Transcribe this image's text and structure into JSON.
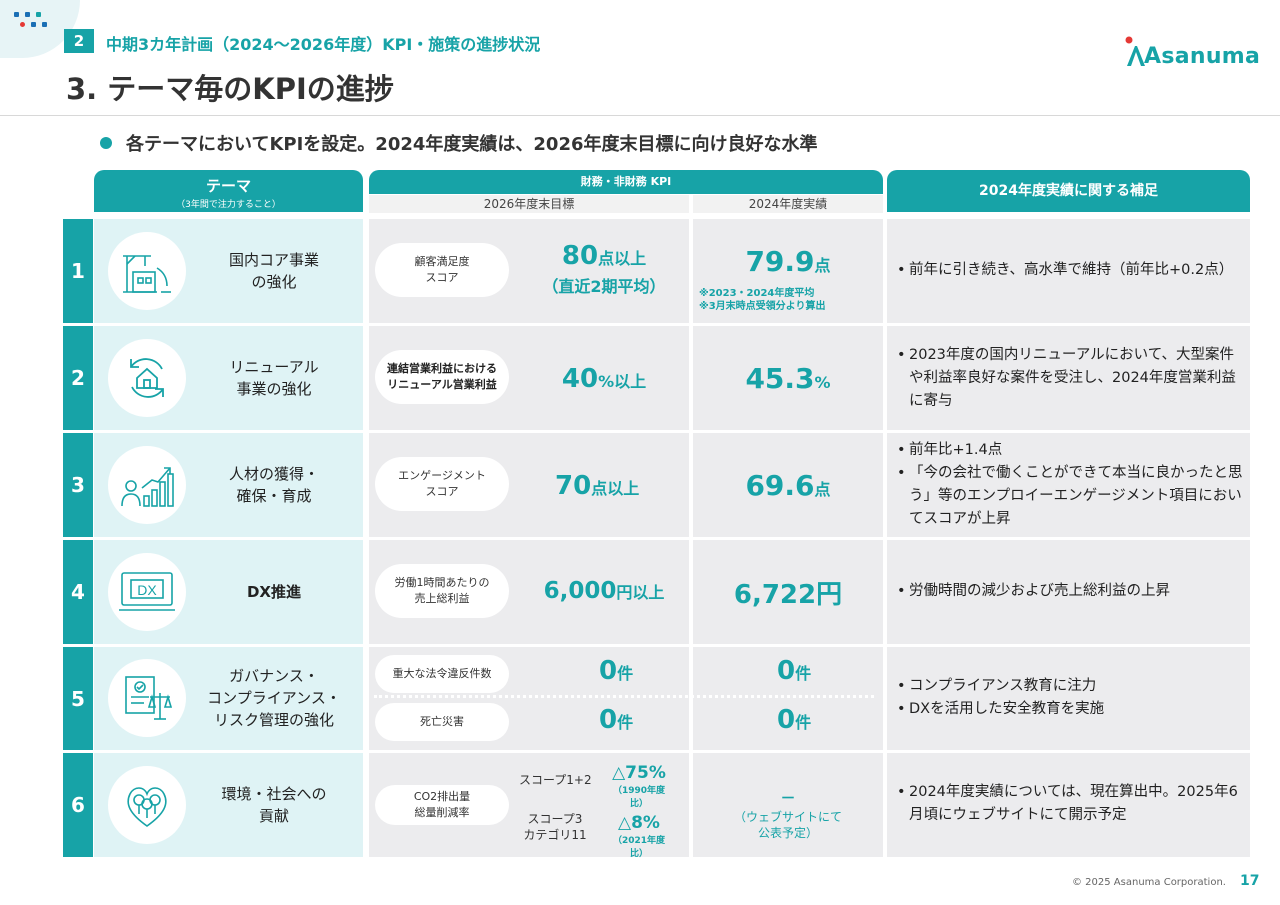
{
  "header": {
    "section_number": "2",
    "section_title": "中期3カ年計画（2024～2026年度）KPI・施策の進捗状況",
    "page_title": "3. テーマ毎のKPIの進捗",
    "logo_text": "Asanuma"
  },
  "lead": "各テーマにおいてKPIを設定。2024年度実績は、2026年度末目標に向け良好な水準",
  "table": {
    "theme_header": "テーマ",
    "theme_header_sub": "（3年間で注力すること）",
    "kpi_header": "財務・非財務 KPI",
    "target_header": "2026年度末目標",
    "actual_header": "2024年度実績",
    "note_header": "2024年度実績に関する補足",
    "rows": [
      {
        "num": "1",
        "icon": "construction-icon",
        "theme": "国内コア事業\nの強化",
        "kpi": "顧客満足度\nスコア",
        "target_num": "80",
        "target_unit": "点以上",
        "target_sub": "（直近2期平均）",
        "actual_num": "79.9",
        "actual_unit": "点",
        "actual_note": "※2023・2024年度平均\n※3月末時点受領分より算出",
        "notes": [
          "前年に引き続き、高水準で維持（前年比+0.2点）"
        ]
      },
      {
        "num": "2",
        "icon": "house-renewal-icon",
        "theme": "リニューアル\n事業の強化",
        "kpi": "連結営業利益における\nリニューアル営業利益",
        "target_num": "40",
        "target_unit": "%以上",
        "actual_num": "45.3",
        "actual_unit": "%",
        "notes": [
          "2023年度の国内リニューアルにおいて、大型案件や利益率良好な案件を受注し、2024年度営業利益に寄与"
        ]
      },
      {
        "num": "3",
        "icon": "growth-person-icon",
        "theme": "人材の獲得・\n確保・育成",
        "kpi": "エンゲージメント\nスコア",
        "target_num": "70",
        "target_unit": "点以上",
        "actual_num": "69.6",
        "actual_unit": "点",
        "notes": [
          "前年比+1.4点",
          "「今の会社で働くことができて本当に良かったと思う」等のエンプロイーエンゲージメント項目においてスコアが上昇"
        ]
      },
      {
        "num": "4",
        "icon": "dx-monitor-icon",
        "theme": "DX推進",
        "kpi": "労働1時間あたりの\n売上総利益",
        "target_num": "6,000",
        "target_unit": "円以上",
        "actual_num": "6,722",
        "actual_unit": "円",
        "notes": [
          "労働時間の減少および売上総利益の上昇"
        ]
      },
      {
        "num": "5",
        "icon": "compliance-scale-icon",
        "theme": "ガバナンス・\nコンプライアンス・\nリスク管理の強化",
        "kpi_a": "重大な法令違反件数",
        "target_a_num": "0",
        "target_a_unit": "件",
        "actual_a_num": "0",
        "actual_a_unit": "件",
        "kpi_b": "死亡災害",
        "target_b_num": "0",
        "target_b_unit": "件",
        "actual_b_num": "0",
        "actual_b_unit": "件",
        "notes": [
          "コンプライアンス教育に注力",
          "DXを活用した安全教育を実施"
        ]
      },
      {
        "num": "6",
        "icon": "environment-trees-icon",
        "theme": "環境・社会への\n貢献",
        "kpi": "CO2排出量\n総量削減率",
        "scope1_label": "スコープ1+2",
        "scope1_value": "△75%",
        "scope1_base": "（1990年度比）",
        "scope3_label": "スコープ3\nカテゴリ11",
        "scope3_value": "△8%",
        "scope3_base": "（2021年度比）",
        "actual_num": "－",
        "actual_note": "（ウェブサイトにて\n公表予定）",
        "notes": [
          "2024年度実績については、現在算出中。2025年6月頃にウェブサイトにて開示予定"
        ]
      }
    ]
  },
  "footer": {
    "copyright": "© 2025 Asanuma Corporation.",
    "page_number": "17"
  },
  "colors": {
    "accent": "#17a3a7",
    "light": "#dff3f5",
    "cell": "#ececee"
  }
}
